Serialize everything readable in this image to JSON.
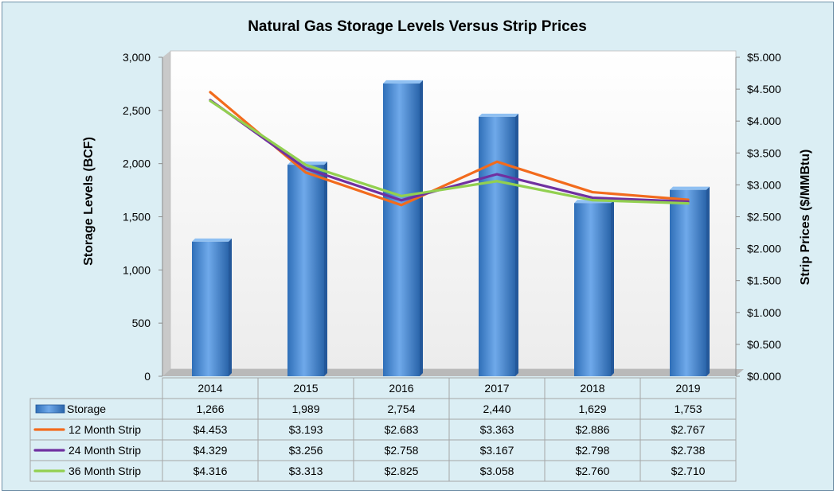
{
  "chart_data": {
    "type": "bar",
    "title": "Natural Gas Storage Levels Versus Strip Prices",
    "ylabel": "Storage Levels (BCF)",
    "y2label": "Strip Prices ($/MMBtu)",
    "categories": [
      "2014",
      "2015",
      "2016",
      "2017",
      "2018",
      "2019"
    ],
    "ylim": [
      0,
      3000
    ],
    "y2lim": [
      0,
      5
    ],
    "yticks": [
      "0",
      "500",
      "1,000",
      "1,500",
      "2,000",
      "2,500",
      "3,000"
    ],
    "y2ticks": [
      "$0.000",
      "$0.500",
      "$1.000",
      "$1.500",
      "$2.000",
      "$2.500",
      "$3.000",
      "$3.500",
      "$4.000",
      "$4.500",
      "$5.000"
    ],
    "grid": false,
    "legend": "data-table",
    "bar_series": {
      "name": "Storage",
      "color": "#4f8fdc",
      "values": [
        1266,
        1989,
        2754,
        2440,
        1629,
        1753
      ],
      "labels": [
        "1,266",
        "1,989",
        "2,754",
        "2,440",
        "1,629",
        "1,753"
      ]
    },
    "line_series": [
      {
        "name": "12 Month Strip",
        "color": "#f26b1d",
        "values": [
          4.453,
          3.193,
          2.683,
          3.363,
          2.886,
          2.767
        ],
        "labels": [
          "$4.453",
          "$3.193",
          "$2.683",
          "$3.363",
          "$2.886",
          "$2.767"
        ]
      },
      {
        "name": "24 Month Strip",
        "color": "#7030a0",
        "values": [
          4.329,
          3.256,
          2.758,
          3.167,
          2.798,
          2.738
        ],
        "labels": [
          "$4.329",
          "$3.256",
          "$2.758",
          "$3.167",
          "$2.798",
          "$2.738"
        ]
      },
      {
        "name": "36 Month Strip",
        "color": "#92d050",
        "values": [
          4.316,
          3.313,
          2.825,
          3.058,
          2.76,
          2.71
        ],
        "labels": [
          "$4.316",
          "$3.313",
          "$2.825",
          "$3.058",
          "$2.760",
          "$2.710"
        ]
      }
    ]
  }
}
